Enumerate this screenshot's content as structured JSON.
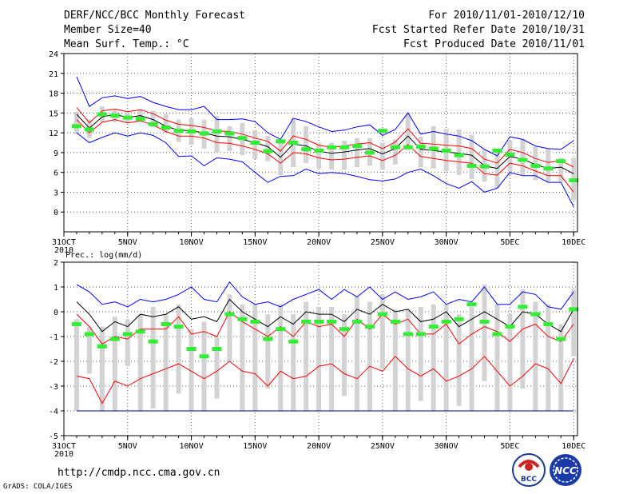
{
  "header": {
    "title": "DERF/NCC/BCC Monthly Forecast",
    "member_size": "Member Size=40",
    "variable": "Mean Surf. Temp.: °C",
    "period": "For 2010/11/01-2010/12/10",
    "started": "Fcst Started Refer Date 2010/10/31",
    "produced": "Fcst Produced Date 2010/11/01"
  },
  "footer": {
    "url": "http://cmdp.ncc.cma.gov.cn",
    "credit": "GrADS: COLA/IGES",
    "logo_left_text": "BCC",
    "logo_right_text": "NCC"
  },
  "colors": {
    "max_min": "#0000ff",
    "spread": "#ff0000",
    "mean": "#000000",
    "obs": "#33ee33",
    "box": "#d3d3d3",
    "floor": "#000080"
  },
  "chart_data": [
    {
      "type": "line",
      "name": "temperature",
      "title": "Mean Surf. Temp.: °C",
      "xlabel": "",
      "ylabel": "",
      "ylim": [
        -3,
        24
      ],
      "yticks": [
        0,
        3,
        6,
        9,
        12,
        15,
        18,
        21,
        24
      ],
      "x_tick_labels": [
        "31OCT",
        "5NOV",
        "10NOV",
        "15NOV",
        "20NOV",
        "25NOV",
        "30NOV",
        "5DEC",
        "10DEC"
      ],
      "x_tick_days": [
        0,
        5,
        10,
        15,
        20,
        25,
        30,
        35,
        40
      ],
      "year_label": "2010",
      "days": [
        1,
        2,
        3,
        4,
        5,
        6,
        7,
        8,
        9,
        10,
        11,
        12,
        13,
        14,
        15,
        16,
        17,
        18,
        19,
        20,
        21,
        22,
        23,
        24,
        25,
        26,
        27,
        28,
        29,
        30,
        31,
        32,
        33,
        34,
        35,
        36,
        37,
        38,
        39,
        40
      ],
      "series": [
        {
          "name": "max",
          "color": "#0000ff",
          "values": [
            20.5,
            16.0,
            17.3,
            17.6,
            17.2,
            17.5,
            16.6,
            16.0,
            15.5,
            15.5,
            16.0,
            14.0,
            14.0,
            14.1,
            13.7,
            12.0,
            11.0,
            14.2,
            13.7,
            12.9,
            12.2,
            12.4,
            12.9,
            13.2,
            11.6,
            12.5,
            15.0,
            11.8,
            12.2,
            11.8,
            11.5,
            10.8,
            9.5,
            8.5,
            11.4,
            11.0,
            10.0,
            9.6,
            9.5,
            10.8
          ]
        },
        {
          "name": "spread_upper",
          "color": "#ff0000",
          "values": [
            15.8,
            13.5,
            15.3,
            15.6,
            15.2,
            15.5,
            14.9,
            13.9,
            13.3,
            13.1,
            12.8,
            12.3,
            12.2,
            11.8,
            11.2,
            10.7,
            9.2,
            11.5,
            11.0,
            10.1,
            9.8,
            10.0,
            10.3,
            10.5,
            9.6,
            10.6,
            12.6,
            10.4,
            10.3,
            10.1,
            10.0,
            9.6,
            8.0,
            7.4,
            9.5,
            9.0,
            8.1,
            7.5,
            7.8,
            6.8
          ]
        },
        {
          "name": "mean",
          "color": "#000000",
          "values": [
            14.8,
            12.7,
            14.4,
            14.8,
            14.3,
            14.6,
            14.0,
            13.0,
            12.4,
            12.3,
            12.0,
            11.5,
            11.4,
            11.0,
            10.5,
            9.9,
            8.3,
            10.3,
            10.0,
            9.2,
            8.9,
            9.1,
            9.4,
            9.6,
            8.8,
            9.6,
            11.5,
            9.5,
            9.3,
            9.1,
            8.9,
            8.6,
            7.0,
            6.6,
            8.4,
            8.0,
            7.2,
            6.6,
            6.8,
            5.8
          ]
        },
        {
          "name": "spread_lower",
          "color": "#ff0000",
          "values": [
            14.0,
            12.0,
            13.6,
            14.0,
            13.5,
            13.8,
            13.2,
            12.2,
            11.5,
            11.5,
            11.2,
            10.5,
            10.4,
            10.0,
            9.5,
            8.8,
            7.4,
            9.0,
            8.8,
            8.2,
            7.9,
            8.0,
            8.3,
            8.5,
            7.8,
            8.6,
            10.2,
            8.4,
            8.1,
            7.8,
            7.6,
            7.4,
            5.8,
            5.6,
            7.4,
            7.0,
            6.2,
            5.5,
            5.5,
            3.0
          ]
        },
        {
          "name": "min",
          "color": "#0000ff",
          "values": [
            12.0,
            10.5,
            11.3,
            12.0,
            11.5,
            12.0,
            11.6,
            10.5,
            8.4,
            8.5,
            7.0,
            8.2,
            8.0,
            7.6,
            6.0,
            4.5,
            5.4,
            5.5,
            6.5,
            5.8,
            6.0,
            5.8,
            5.4,
            4.9,
            4.7,
            5.0,
            6.0,
            6.5,
            5.5,
            4.3,
            3.6,
            4.6,
            3.0,
            3.6,
            6.0,
            5.5,
            5.5,
            4.5,
            4.5,
            0.8
          ]
        },
        {
          "name": "observed",
          "color": "#33ee33",
          "values": [
            13.0,
            12.5,
            14.8,
            14.6,
            14.3,
            14.1,
            13.3,
            12.8,
            12.3,
            12.2,
            11.9,
            12.2,
            11.9,
            11.2,
            10.5,
            9.2,
            10.7,
            10.5,
            9.5,
            9.3,
            9.8,
            9.8,
            10.0,
            9.0,
            12.3,
            9.8,
            9.8,
            9.9,
            9.6,
            9.3,
            8.6,
            7.0,
            6.9,
            9.3,
            8.7,
            7.9,
            7.0,
            6.6,
            7.7,
            4.8
          ]
        }
      ],
      "boxes": {
        "q_high": [
          15.2,
          14.0,
          16.0,
          15.5,
          15.0,
          15.5,
          15.3,
          14.8,
          14.0,
          14.2,
          14.0,
          14.5,
          13.0,
          13.5,
          12.4,
          11.5,
          11.0,
          14.2,
          13.0,
          10.5,
          10.5,
          10.8,
          11.2,
          11.2,
          10.5,
          11.0,
          15.0,
          11.4,
          13.0,
          12.6,
          12.5,
          11.7,
          9.5,
          9.2,
          10.8,
          11.0,
          9.9,
          9.6,
          8.2,
          8.2
        ],
        "q_low": [
          11.8,
          11.2,
          13.6,
          13.6,
          13.4,
          13.6,
          12.8,
          12.0,
          10.6,
          10.2,
          9.6,
          9.0,
          9.2,
          8.6,
          8.0,
          7.7,
          5.6,
          6.8,
          7.4,
          6.6,
          6.4,
          6.4,
          6.8,
          7.0,
          6.4,
          7.2,
          9.4,
          6.8,
          6.6,
          6.2,
          5.6,
          5.0,
          4.6,
          3.6,
          5.6,
          5.6,
          4.8,
          4.6,
          4.6,
          1.8
        ]
      }
    },
    {
      "type": "line",
      "name": "precipitation",
      "title": "Prec.: log(mm/d)",
      "xlabel": "",
      "ylabel": "",
      "ylim": [
        -5,
        2
      ],
      "yticks": [
        -5,
        -4,
        -3,
        -2,
        -1,
        0,
        1,
        2
      ],
      "x_tick_labels": [
        "31OCT",
        "5NOV",
        "10NOV",
        "15NOV",
        "20NOV",
        "25NOV",
        "30NOV",
        "5DEC",
        "10DEC"
      ],
      "x_tick_days": [
        0,
        5,
        10,
        15,
        20,
        25,
        30,
        35,
        40
      ],
      "year_label": "2010",
      "days": [
        1,
        2,
        3,
        4,
        5,
        6,
        7,
        8,
        9,
        10,
        11,
        12,
        13,
        14,
        15,
        16,
        17,
        18,
        19,
        20,
        21,
        22,
        23,
        24,
        25,
        26,
        27,
        28,
        29,
        30,
        31,
        32,
        33,
        34,
        35,
        36,
        37,
        38,
        39,
        40
      ],
      "series": [
        {
          "name": "max",
          "color": "#0000ff",
          "values": [
            1.1,
            0.8,
            0.3,
            0.4,
            0.2,
            0.5,
            0.4,
            0.5,
            0.7,
            1.0,
            0.5,
            0.4,
            1.2,
            0.6,
            0.3,
            0.4,
            0.2,
            0.5,
            0.7,
            0.9,
            0.5,
            0.9,
            0.6,
            1.0,
            0.5,
            0.8,
            0.5,
            0.6,
            0.8,
            0.3,
            0.5,
            0.4,
            1.0,
            0.3,
            0.3,
            0.8,
            0.7,
            0.2,
            0.1,
            0.8
          ]
        },
        {
          "name": "spread_upper",
          "color": "#ff0000",
          "values": [
            -0.1,
            -0.6,
            -1.3,
            -1.0,
            -1.1,
            -0.7,
            -0.7,
            -0.7,
            -0.2,
            -0.9,
            -0.8,
            -1.0,
            0.0,
            -0.4,
            -0.7,
            -1.0,
            -0.6,
            -1.0,
            -0.4,
            -0.6,
            -0.5,
            -1.0,
            -0.3,
            -0.7,
            -0.1,
            -0.5,
            -0.3,
            -0.9,
            -0.9,
            -0.5,
            -1.3,
            -0.9,
            -0.6,
            -0.8,
            -1.2,
            -0.7,
            -0.5,
            -1.0,
            -1.2,
            -0.5
          ]
        },
        {
          "name": "mean",
          "color": "#000000",
          "values": [
            0.4,
            -0.1,
            -0.8,
            -0.4,
            -0.6,
            -0.1,
            -0.2,
            -0.1,
            0.2,
            -0.3,
            -0.2,
            -0.4,
            0.5,
            0.0,
            -0.3,
            -0.6,
            -0.2,
            -0.5,
            0.0,
            -0.1,
            -0.1,
            -0.4,
            0.1,
            -0.1,
            0.3,
            0.0,
            0.1,
            -0.4,
            -0.3,
            0.0,
            -0.6,
            -0.3,
            0.0,
            -0.3,
            -0.6,
            0.0,
            -0.1,
            -0.5,
            -0.8,
            0.1
          ]
        },
        {
          "name": "spread_lower",
          "color": "#ff0000",
          "values": [
            -2.6,
            -2.7,
            -3.7,
            -2.8,
            -3.0,
            -2.7,
            -2.5,
            -2.3,
            -2.1,
            -2.4,
            -2.7,
            -2.4,
            -2.0,
            -2.4,
            -2.5,
            -3.0,
            -2.4,
            -2.7,
            -2.6,
            -2.2,
            -2.1,
            -2.5,
            -2.7,
            -2.2,
            -2.4,
            -1.8,
            -2.3,
            -2.6,
            -2.3,
            -2.8,
            -2.6,
            -2.3,
            -1.8,
            -2.4,
            -3.0,
            -2.6,
            -2.1,
            -2.3,
            -2.9,
            -1.9
          ]
        },
        {
          "name": "min",
          "color": "#0000ff",
          "values": [
            -4,
            -4,
            -4,
            -4,
            -4,
            -4,
            -4,
            -4,
            -4,
            -4,
            -4,
            -4,
            -4,
            -4,
            -4,
            -4,
            -4,
            -4,
            -4,
            -4,
            -4,
            -4,
            -4,
            -4,
            -4,
            -4,
            -4,
            -4,
            -4,
            -4,
            -4,
            -4,
            -4,
            -4,
            -4,
            -4,
            -4,
            -4,
            -4,
            -4
          ]
        },
        {
          "name": "observed",
          "color": "#33ee33",
          "values": [
            -0.5,
            -0.9,
            -1.4,
            -1.1,
            -0.9,
            -0.8,
            -1.2,
            -0.5,
            -0.6,
            -1.5,
            -1.8,
            -1.5,
            -0.1,
            -0.3,
            -0.4,
            -1.1,
            -0.7,
            -1.2,
            -0.4,
            -0.4,
            -0.4,
            -0.7,
            -0.4,
            -0.6,
            -0.1,
            -0.4,
            -0.9,
            -0.9,
            -0.6,
            -0.4,
            -0.3,
            0.3,
            -0.4,
            -0.9,
            -0.6,
            0.2,
            -0.1,
            -0.5,
            -1.1,
            0.1
          ]
        }
      ],
      "boxes": {
        "q_high": [
          -0.3,
          -0.6,
          -0.6,
          -0.2,
          -0.3,
          -0.1,
          0.2,
          -0.1,
          0.3,
          -0.7,
          -0.4,
          -1.0,
          0.7,
          0.3,
          0.3,
          -0.1,
          0.3,
          -0.1,
          0.4,
          0.2,
          0.2,
          -0.1,
          0.6,
          0.4,
          0.7,
          0.1,
          0.1,
          0.2,
          0.3,
          0.3,
          -0.1,
          0.2,
          1.1,
          0.3,
          -0.1,
          0.9,
          0.4,
          0.3,
          -0.5,
          0.9
        ],
        "q_low": [
          -4.0,
          -2.5,
          -4.0,
          -4.0,
          -2.2,
          -4.0,
          -3.9,
          -4.0,
          -3.3,
          -4.0,
          -4.0,
          -3.5,
          -2.0,
          -4.0,
          -4.0,
          -3.1,
          -4.0,
          -4.0,
          -4.0,
          -4.0,
          -4.0,
          -3.4,
          -4.0,
          -4.0,
          -2.3,
          -4.0,
          -4.0,
          -3.6,
          -4.0,
          -4.0,
          -3.8,
          -4.0,
          -2.8,
          -4.0,
          -4.0,
          -3.1,
          -4.0,
          -4.0,
          -4.0,
          -1.8
        ]
      }
    }
  ]
}
